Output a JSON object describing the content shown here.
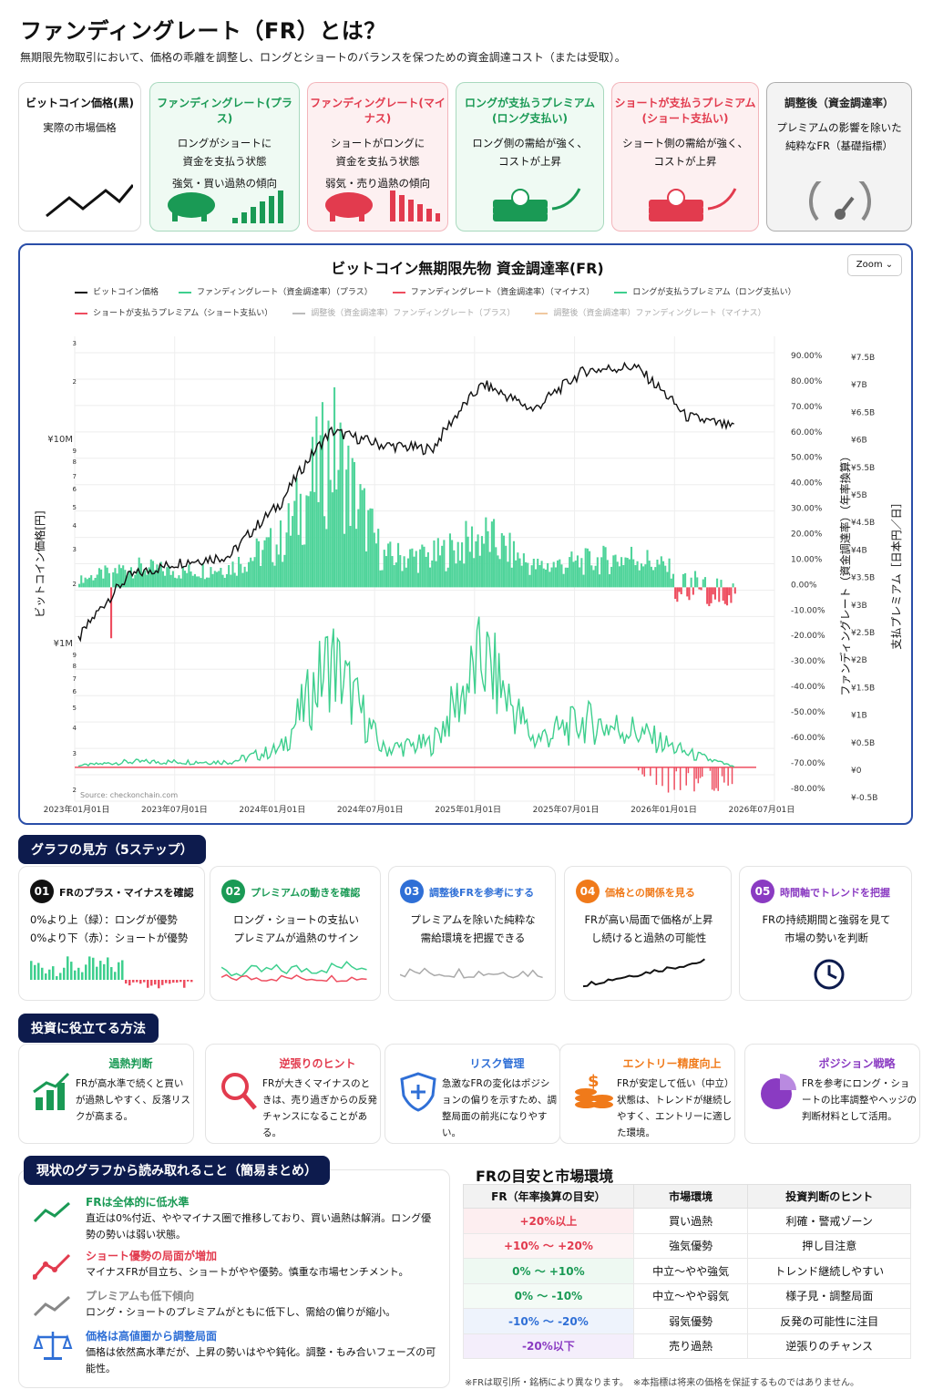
{
  "header": {
    "title": "ファンディングレート（FR）とは？",
    "subtitle": "無期限先物取引において、価格の乖離を調整し、ロングとショートのバランスを保つための資金調達コスト（または受取）。"
  },
  "cards": [
    {
      "title": "ビットコイン価格(黒)",
      "desc": [
        "実際の市場価格"
      ],
      "color": "#111111",
      "bg": "#ffffff"
    },
    {
      "title": "ファンディングレート(プラス)",
      "desc": [
        "ロングがショートに",
        "資金を支払う状態",
        "強気・買い過熱の傾向"
      ],
      "color": "#1a9a55",
      "bg": "#effaf3"
    },
    {
      "title": "ファンディングレート(マイナス)",
      "desc": [
        "ショートがロングに",
        "資金を支払う状態",
        "弱気・売り過熱の傾向"
      ],
      "color": "#e23b4e",
      "bg": "#fdf0f1"
    },
    {
      "title": "ロングが支払うプレミアム (ロング支払い)",
      "desc": [
        "ロング側の需給が強く、",
        "コストが上昇"
      ],
      "color": "#1a9a55",
      "bg": "#effaf3"
    },
    {
      "title": "ショートが支払うプレミアム (ショート支払い)",
      "desc": [
        "ショート側の需給が強く、",
        "コストが上昇"
      ],
      "color": "#e23b4e",
      "bg": "#fdf0f1"
    },
    {
      "title": "調整後（資金調達率）",
      "desc": [
        "プレミアムの影響を除いた",
        "純粋なFR（基礎指標）"
      ],
      "color": "#222222",
      "bg": "#f3f3f3"
    }
  ],
  "chart": {
    "title": "ビットコイン無期限先物 資金調達率(FR)",
    "zoom_label": "Zoom ⌄",
    "legend": [
      {
        "label": "ビットコイン価格",
        "color": "#111111"
      },
      {
        "label": "ファンディングレート（資金調達率）（プラス）",
        "color": "#3ecf8e"
      },
      {
        "label": "ファンディングレート（資金調達率）（マイナス）",
        "color": "#ee4d5f"
      },
      {
        "label": "ロングが支払うプレミアム（ロング支払い）",
        "color": "#3ecf8e"
      },
      {
        "label": "ショートが支払うプレミアム（ショート支払い）",
        "color": "#ee4d5f"
      },
      {
        "label": "調整後（資金調達率）ファンディングレート（プラス）",
        "color": "#bbbbbb"
      },
      {
        "label": "調整後（資金調達率）ファンディングレート（マイナス）",
        "color": "#f0c8a0"
      }
    ],
    "left_axis_label": "ビットコイン価格[円]",
    "right_axis_label_1": "ファンディングレート（資金調達率）（年率換算）",
    "right_axis_label_2": "支払プレミアム［日本円／日］",
    "left_ticks_top": [
      "3",
      "2",
      "¥10M",
      "9",
      "8",
      "7",
      "6",
      "5",
      "4",
      "3",
      "2"
    ],
    "left_ticks_bottom": [
      "¥1M",
      "9",
      "8",
      "7",
      "6",
      "5",
      "4",
      "3",
      "2"
    ],
    "pct_ticks": [
      "90.00%",
      "80.00%",
      "70.00%",
      "60.00%",
      "50.00%",
      "40.00%",
      "30.00%",
      "20.00%",
      "10.00%",
      "0.00%",
      "-10.00%",
      "-20.00%",
      "-30.00%",
      "-40.00%",
      "-50.00%",
      "-60.00%",
      "-70.00%",
      "-80.00%"
    ],
    "yen_ticks": [
      "¥7.5B",
      "¥7B",
      "¥6.5B",
      "¥6B",
      "¥5.5B",
      "¥5B",
      "¥4.5B",
      "¥4B",
      "¥3.5B",
      "¥3B",
      "¥2.5B",
      "¥2B",
      "¥1.5B",
      "¥1B",
      "¥0.5B",
      "¥0",
      "¥-0.5B"
    ],
    "x_ticks": [
      "2023年01月01日",
      "2023年07月01日",
      "2024年01月01日",
      "2024年07月01日",
      "2025年01月01日",
      "2025年07月01日",
      "2026年01月01日",
      "2026年07月01日"
    ],
    "source": "Source: checkonchain.com"
  },
  "chart_data": {
    "type": "line",
    "x": [
      "2023-01",
      "2023-04",
      "2023-07",
      "2023-10",
      "2024-01",
      "2024-03",
      "2024-07",
      "2024-10",
      "2025-01",
      "2025-04",
      "2025-07",
      "2025-10",
      "2026-01",
      "2026-03"
    ],
    "series": [
      {
        "name": "ビットコイン価格",
        "values": [
          2500000,
          3900000,
          4300000,
          4500000,
          6500000,
          10800000,
          9800000,
          9500000,
          15000000,
          12500000,
          16500000,
          17000000,
          12000000,
          11000000
        ]
      },
      {
        "name": "ファンディングレート（資金調達率）（プラス）",
        "values": [
          3,
          8,
          6,
          8,
          18,
          55,
          12,
          12,
          20,
          8,
          10,
          12,
          5,
          1
        ]
      },
      {
        "name": "ロングが支払うプレミアム（ロング支払い）",
        "values": [
          0.1,
          0.3,
          0.3,
          0.3,
          1.0,
          6.0,
          1.0,
          1.3,
          6.0,
          1.5,
          2.5,
          2.0,
          0.8,
          0.0
        ]
      }
    ]
  },
  "steps_title": "グラフの見方（5ステップ）",
  "steps": [
    {
      "num": "01",
      "title": "FRのプラス・マイナスを確認",
      "desc": [
        "0%より上（緑）：ロングが優勢",
        "0%より下（赤）：ショートが優勢"
      ],
      "color": "#111111"
    },
    {
      "num": "02",
      "title": "プレミアムの動きを確認",
      "desc": [
        "ロング・ショートの支払い",
        "プレミアムが過熱のサイン"
      ],
      "color": "#1a9a55"
    },
    {
      "num": "03",
      "title": "調整後FRを参考にする",
      "desc": [
        "プレミアムを除いた純粋な",
        "需給環境を把握できる"
      ],
      "color": "#2f6fd6"
    },
    {
      "num": "04",
      "title": "価格との関係を見る",
      "desc": [
        "FRが高い局面で価格が上昇",
        "し続けると過熱の可能性"
      ],
      "color": "#f07a1a"
    },
    {
      "num": "05",
      "title": "時間軸でトレンドを把握",
      "desc": [
        "FRの持続期間と強弱を見て",
        "市場の勢いを判断"
      ],
      "color": "#8a3bc2"
    }
  ],
  "tips_title": "投資に役立てる方法",
  "tips": [
    {
      "title": "過熱判断",
      "desc": "FRが高水準で続くと買いが過熱しやすく、反落リスクが高まる。",
      "color": "#1a9a55",
      "icon": "growth-chart-icon"
    },
    {
      "title": "逆張りのヒント",
      "desc": "FRが大きくマイナスのときは、売り過ぎからの反発チャンスになることがある。",
      "color": "#e23b4e",
      "icon": "magnifier-icon"
    },
    {
      "title": "リスク管理",
      "desc": "急激なFRの変化はポジションの偏りを示すため、調整局面の前兆になりやすい。",
      "color": "#2f6fd6",
      "icon": "shield-icon"
    },
    {
      "title": "エントリー精度向上",
      "desc": "FRが安定して低い（中立）状態は、トレンドが継続しやすく、エントリーに適した環境。",
      "color": "#f07a1a",
      "icon": "coins-icon"
    },
    {
      "title": "ポジション戦略",
      "desc": "FRを参考にロング・ショートの比率調整やヘッジの判断材料として活用。",
      "color": "#8a3bc2",
      "icon": "pie-icon"
    }
  ],
  "summary_title": "現状のグラフから読み取れること（簡易まとめ）",
  "summary": [
    {
      "title": "FRは全体的に低水準",
      "desc": "直近は0%付近、ややマイナス圏で推移しており、買い過熱は解消。ロング優勢の勢いは弱い状態。",
      "color": "#1a9a55"
    },
    {
      "title": "ショート優勢の局面が増加",
      "desc": "マイナスFRが目立ち、ショートがやや優勢。慎重な市場センチメント。",
      "color": "#e23b4e"
    },
    {
      "title": "プレミアムも低下傾向",
      "desc": "ロング・ショートのプレミアムがともに低下し、需給の偏りが縮小。",
      "color": "#888888"
    },
    {
      "title": "価格は高値圏から調整局面",
      "desc": "価格は依然高水準だが、上昇の勢いはやや鈍化。調整・もみ合いフェーズの可能性。",
      "color": "#2f6fd6"
    }
  ],
  "table": {
    "title": "FRの目安と市場環境",
    "headers": [
      "FR（年率換算の目安）",
      "市場環境",
      "投資判断のヒント"
    ],
    "rows": [
      {
        "fr": "+20%以上",
        "env": "買い過熱",
        "hint": "利確・警戒ゾーン",
        "color": "#e23b4e",
        "bg": "#fdeef0"
      },
      {
        "fr": "+10% 〜 +20%",
        "env": "強気優勢",
        "hint": "押し目注意",
        "color": "#e23b4e",
        "bg": "#fdf4f5"
      },
      {
        "fr": "0% 〜 +10%",
        "env": "中立〜やや強気",
        "hint": "トレンド継続しやすい",
        "color": "#1a9a55",
        "bg": "#eef9f2"
      },
      {
        "fr": "0% 〜 -10%",
        "env": "中立〜やや弱気",
        "hint": "様子見・調整局面",
        "color": "#1a9a55",
        "bg": "#f4fbf6"
      },
      {
        "fr": "-10% 〜 -20%",
        "env": "弱気優勢",
        "hint": "反発の可能性に注目",
        "color": "#2f6fd6",
        "bg": "#eef3fc"
      },
      {
        "fr": "-20%以下",
        "env": "売り過熱",
        "hint": "逆張りのチャンス",
        "color": "#8a3bc2",
        "bg": "#f4eefb"
      }
    ],
    "footnote": "※FRは取引所・銘柄により異なります。　※本指標は将来の価格を保証するものではありません。"
  }
}
